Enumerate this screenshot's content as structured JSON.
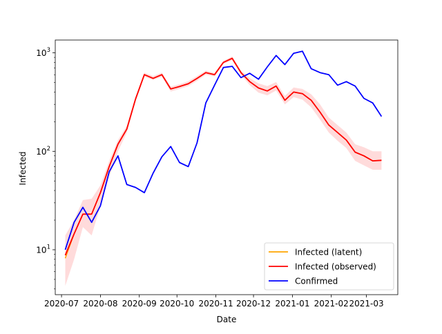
{
  "chart_data": {
    "type": "line",
    "title": "",
    "xlabel": "Date",
    "ylabel": "Infected",
    "yscale": "log",
    "ylim": [
      3.5,
      1350
    ],
    "xlim": [
      "2020-06-26",
      "2021-03-26"
    ],
    "grid": false,
    "legend_position": "lower-right",
    "x_ticks": [
      "2020-07-01",
      "2020-08-01",
      "2020-09-01",
      "2020-10-01",
      "2020-11-01",
      "2020-12-01",
      "2021-01-01",
      "2021-02-01",
      "2021-03-01"
    ],
    "x_tick_labels": [
      "2020-07",
      "2020-08",
      "2020-09",
      "2020-10",
      "2020-11",
      "2020-12",
      "2021-01",
      "2021-02",
      "2021-03"
    ],
    "y_ticks": [
      10,
      100,
      1000
    ],
    "y_tick_labels": [
      "10",
      "10",
      "10"
    ],
    "y_tick_exponents": [
      "1",
      "2",
      "3"
    ],
    "x": [
      "2020-07-04",
      "2020-07-11",
      "2020-07-18",
      "2020-07-25",
      "2020-08-01",
      "2020-08-08",
      "2020-08-15",
      "2020-08-22",
      "2020-08-29",
      "2020-09-05",
      "2020-09-12",
      "2020-09-19",
      "2020-09-26",
      "2020-10-03",
      "2020-10-10",
      "2020-10-17",
      "2020-10-24",
      "2020-10-31",
      "2020-11-07",
      "2020-11-14",
      "2020-11-21",
      "2020-11-28",
      "2020-12-05",
      "2020-12-12",
      "2020-12-19",
      "2020-12-26",
      "2021-01-02",
      "2021-01-09",
      "2021-01-16",
      "2021-01-23",
      "2021-01-30",
      "2021-02-06",
      "2021-02-13",
      "2021-02-20",
      "2021-02-27",
      "2021-03-06",
      "2021-03-13"
    ],
    "series": [
      {
        "name": "Infected (latent)",
        "color": "#ffa500",
        "values": [
          8.2,
          14.5,
          23,
          23,
          38,
          70,
          118,
          168,
          340,
          600,
          550,
          600,
          430,
          455,
          485,
          550,
          630,
          600,
          800,
          880,
          630,
          510,
          440,
          410,
          460,
          330,
          400,
          385,
          330,
          250,
          185,
          155,
          130,
          98,
          90,
          80,
          81
        ]
      },
      {
        "name": "Infected (observed)",
        "color": "#ff0000",
        "values": [
          8.8,
          14.5,
          23,
          23,
          38,
          70,
          118,
          168,
          340,
          600,
          550,
          600,
          430,
          455,
          485,
          550,
          630,
          600,
          800,
          880,
          630,
          510,
          440,
          410,
          460,
          330,
          400,
          385,
          330,
          250,
          185,
          155,
          130,
          98,
          90,
          80,
          81
        ],
        "band_color": "#ff9999",
        "lower": [
          4.3,
          8,
          17,
          14,
          28,
          55,
          100,
          155,
          320,
          570,
          530,
          570,
          405,
          430,
          460,
          520,
          600,
          575,
          770,
          840,
          600,
          470,
          395,
          370,
          415,
          300,
          355,
          335,
          280,
          210,
          155,
          128,
          108,
          80,
          72,
          65,
          65
        ],
        "upper": [
          14,
          20,
          32,
          33,
          45,
          80,
          130,
          182,
          360,
          630,
          580,
          630,
          455,
          480,
          515,
          580,
          660,
          625,
          830,
          920,
          660,
          555,
          490,
          460,
          505,
          365,
          445,
          430,
          380,
          300,
          220,
          185,
          155,
          118,
          110,
          100,
          100
        ]
      },
      {
        "name": "Confirmed",
        "color": "#0000ff",
        "values": [
          10,
          19,
          27,
          19,
          28,
          62,
          90,
          46,
          43,
          38,
          60,
          88,
          112,
          77,
          70,
          122,
          310,
          470,
          710,
          730,
          560,
          620,
          540,
          720,
          940,
          760,
          990,
          1040,
          690,
          630,
          600,
          470,
          510,
          460,
          345,
          310,
          226
        ]
      }
    ]
  }
}
